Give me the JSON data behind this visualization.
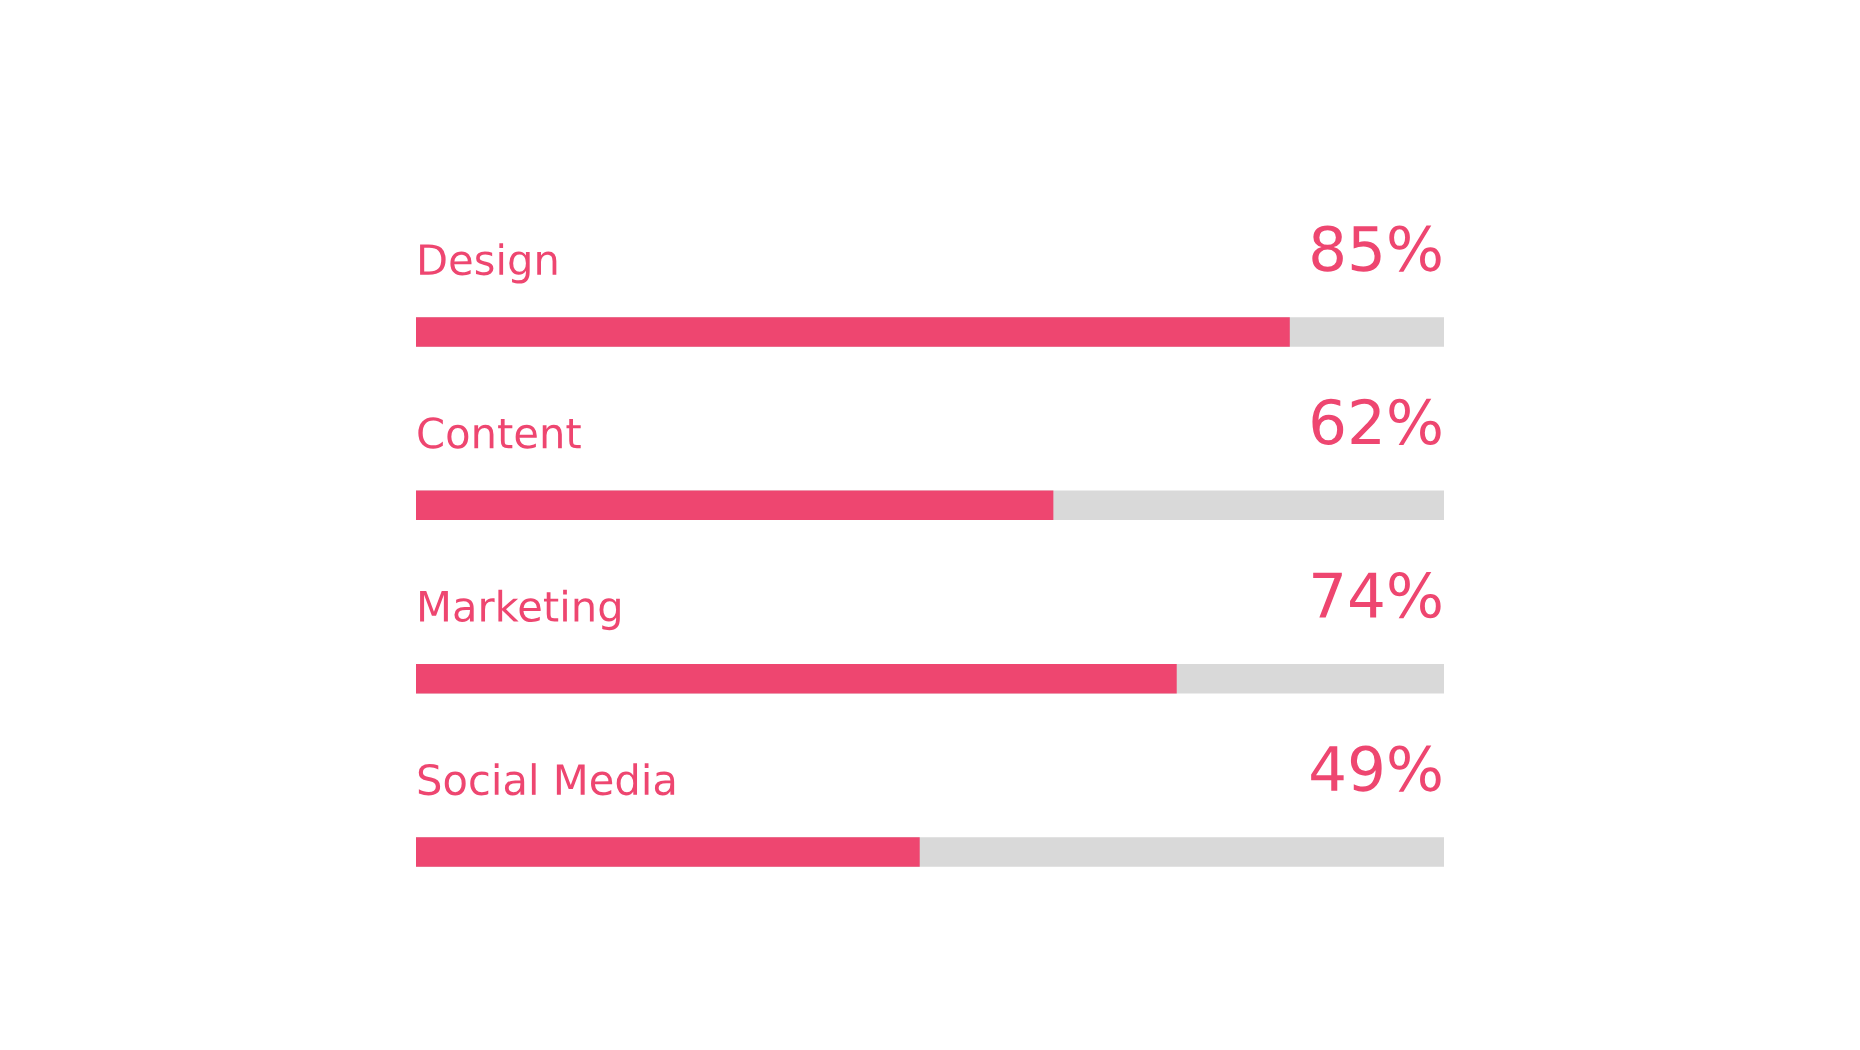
{
  "chart_data": {
    "type": "bar",
    "orientation": "horizontal",
    "categories": [
      "Design",
      "Content",
      "Marketing",
      "Social Media"
    ],
    "values": [
      85,
      62,
      74,
      49
    ],
    "value_labels": [
      "85%",
      "62%",
      "74%",
      "49%"
    ],
    "color": "#ee4670",
    "xlim": [
      0,
      100
    ]
  }
}
